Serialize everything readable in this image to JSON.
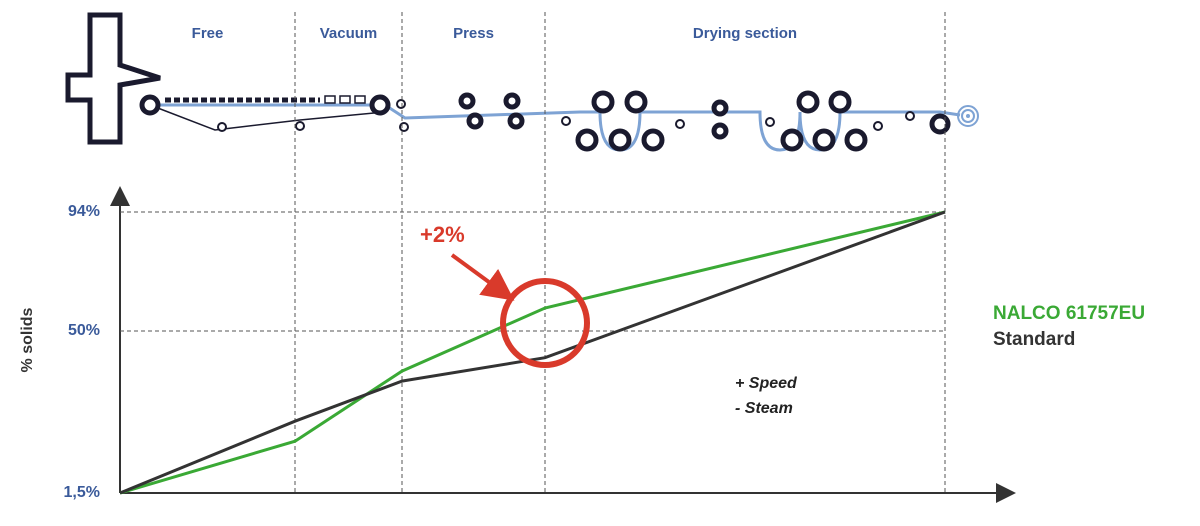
{
  "chart_data": {
    "type": "line",
    "sections": [
      "Free",
      "Vacuum",
      "Press",
      "Drying section"
    ],
    "y_label": "% solids",
    "ylim": [
      1.5,
      94
    ],
    "yticks": [
      {
        "value": 1.5,
        "label": "1,5%"
      },
      {
        "value": 50,
        "label": "50%"
      },
      {
        "value": 94,
        "label": "94%"
      }
    ],
    "grid": true,
    "series": [
      {
        "name": "NALCO 61757EU",
        "color": "#3aa935",
        "values": [
          1.5,
          17,
          38,
          58.5,
          94
        ]
      },
      {
        "name": "Standard",
        "color": "#333333",
        "values": [
          1.5,
          23,
          35,
          42,
          94
        ]
      }
    ],
    "annotations": [
      "+2%",
      "+ Speed",
      "- Steam"
    ]
  }
}
